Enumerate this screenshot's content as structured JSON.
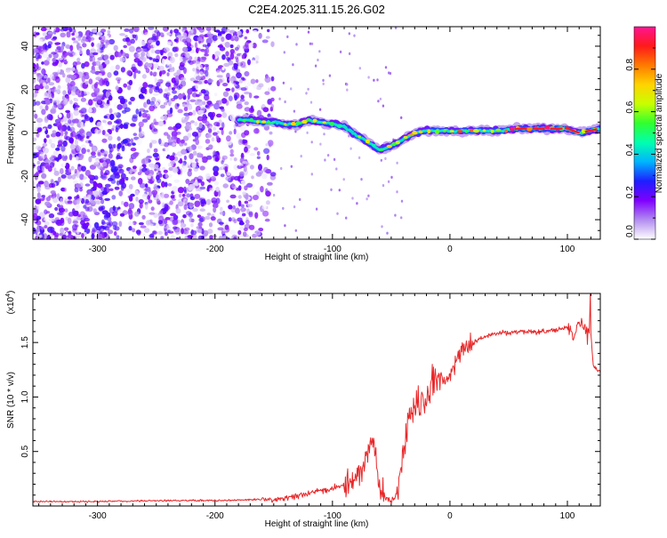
{
  "page_title": "C2E4.2025.311.15.26.G02",
  "chart_data": [
    {
      "type": "heatmap",
      "title": "C2E4.2025.311.15.26.G02",
      "xlabel": "Height of straight line (km)",
      "ylabel": "Frequency (Hz)",
      "xlim": [
        -355,
        128
      ],
      "ylim": [
        -49,
        49
      ],
      "xticks": [
        -300,
        -200,
        -100,
        0,
        100
      ],
      "yticks": [
        -40,
        -20,
        0,
        20,
        40
      ],
      "colorbar": {
        "label": "Normalized spectral amplitude",
        "range": [
          0,
          1
        ],
        "ticks": [
          "0.0",
          "0.2",
          "0.4",
          "0.6",
          "0.8"
        ],
        "tick_values": [
          0,
          0.2,
          0.4,
          0.6,
          0.8
        ],
        "colors": [
          "#ffffff",
          "#b28cf0",
          "#7f00ff",
          "#1e1eff",
          "#00b4ff",
          "#00ffb0",
          "#30ff30",
          "#c8ff00",
          "#ffd400",
          "#ff7a00",
          "#ff1a1a",
          "#ff1493"
        ]
      },
      "ridge": {
        "x": [
          -180,
          -170,
          -160,
          -150,
          -140,
          -130,
          -120,
          -110,
          -100,
          -90,
          -80,
          -70,
          -60,
          -50,
          -40,
          -30,
          -20,
          -10,
          0,
          20,
          40,
          60,
          80,
          100,
          110,
          128
        ],
        "y": [
          6,
          6,
          5,
          5,
          4,
          4,
          6,
          5,
          4,
          3,
          -1,
          -4,
          -8,
          -6,
          -3,
          0,
          1,
          1,
          1,
          1,
          1,
          2,
          2,
          2,
          0,
          2
        ]
      }
    },
    {
      "type": "line",
      "xlabel": "Height of straight line (km)",
      "ylabel": "SNR (10 * v/v)",
      "multiplier": "(x10",
      "multiplier_exp": "4",
      "multiplier_close": ")",
      "xlim": [
        -355,
        128
      ],
      "ylim": [
        0,
        1.95
      ],
      "xticks": [
        -300,
        -200,
        -100,
        0,
        100
      ],
      "yticks": [
        0.5,
        1.0,
        1.5
      ],
      "ytick_labels": [
        "0.5",
        "1.0",
        "1.5"
      ],
      "color": "#e8282a",
      "series": [
        {
          "name": "SNR",
          "x": [
            -355,
            -300,
            -250,
            -200,
            -160,
            -140,
            -120,
            -100,
            -85,
            -75,
            -70,
            -65,
            -60,
            -55,
            -50,
            -45,
            -40,
            -35,
            -30,
            -25,
            -20,
            -15,
            -10,
            -5,
            0,
            5,
            10,
            20,
            30,
            40,
            60,
            80,
            95,
            100,
            105,
            110,
            115,
            120,
            122,
            128
          ],
          "y": [
            0.04,
            0.04,
            0.05,
            0.05,
            0.06,
            0.07,
            0.12,
            0.16,
            0.22,
            0.32,
            0.48,
            0.6,
            0.18,
            0.08,
            0.04,
            0.12,
            0.45,
            0.82,
            0.92,
            0.95,
            1.0,
            1.1,
            1.18,
            1.15,
            1.2,
            1.3,
            1.42,
            1.5,
            1.55,
            1.58,
            1.6,
            1.6,
            1.62,
            1.64,
            1.56,
            1.7,
            1.62,
            1.58,
            1.28,
            1.23
          ]
        }
      ]
    }
  ]
}
